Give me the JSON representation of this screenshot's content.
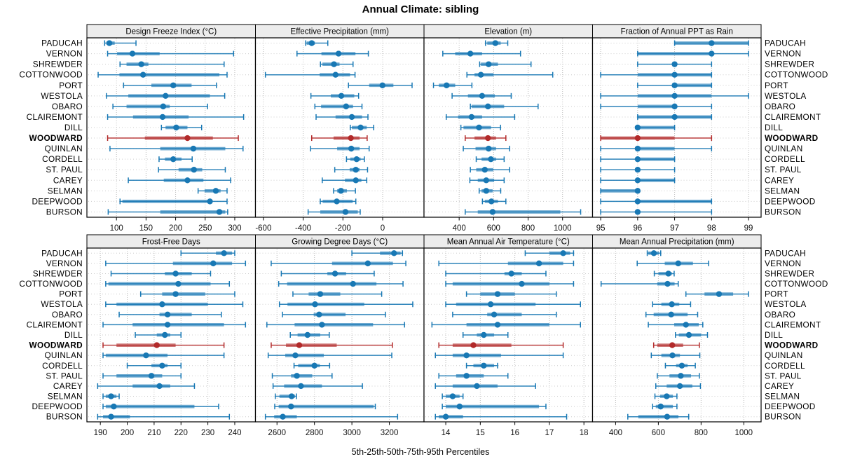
{
  "title": "Annual Climate: sibling",
  "xlabel": "5th-25th-50th-75th-95th Percentiles",
  "colors": {
    "series": "#1878b4",
    "highlight": "#b22a2a",
    "strip_bg": "#ececec",
    "panel_border": "#000000",
    "grid": "#bfbfbf",
    "row_line": "#cccccc",
    "axis_text": "#111111"
  },
  "sites": [
    {
      "name": "PADUCAH",
      "highlight": false
    },
    {
      "name": "VERNON",
      "highlight": false
    },
    {
      "name": "SHREWDER",
      "highlight": false
    },
    {
      "name": "COTTONWOOD",
      "highlight": false
    },
    {
      "name": "PORT",
      "highlight": false
    },
    {
      "name": "WESTOLA",
      "highlight": false
    },
    {
      "name": "OBARO",
      "highlight": false
    },
    {
      "name": "CLAIREMONT",
      "highlight": false
    },
    {
      "name": "DILL",
      "highlight": false
    },
    {
      "name": "WOODWARD",
      "highlight": true
    },
    {
      "name": "QUINLAN",
      "highlight": false
    },
    {
      "name": "CORDELL",
      "highlight": false
    },
    {
      "name": "ST. PAUL",
      "highlight": false
    },
    {
      "name": "CAREY",
      "highlight": false
    },
    {
      "name": "SELMAN",
      "highlight": false
    },
    {
      "name": "DEEPWOOD",
      "highlight": false
    },
    {
      "name": "BURSON",
      "highlight": false
    }
  ],
  "chart_data": [
    {
      "type": "dotplot-interval",
      "title": "Design Freeze Index (°C)",
      "xlim": [
        50,
        335
      ],
      "ticks": [
        100,
        150,
        200,
        250,
        300
      ],
      "percentiles": [
        "5th",
        "25th",
        "50th",
        "75th",
        "95th"
      ],
      "values": [
        [
          80,
          83,
          88,
          97,
          133
        ],
        [
          85,
          101,
          127,
          173,
          298
        ],
        [
          106,
          117,
          142,
          154,
          282
        ],
        [
          69,
          105,
          145,
          274,
          287
        ],
        [
          112,
          159,
          196,
          227,
          269
        ],
        [
          83,
          120,
          183,
          258,
          283
        ],
        [
          94,
          117,
          179,
          190,
          254
        ],
        [
          85,
          128,
          178,
          222,
          315
        ],
        [
          176,
          183,
          201,
          220,
          244
        ],
        [
          85,
          148,
          220,
          263,
          306
        ],
        [
          89,
          174,
          230,
          284,
          314
        ],
        [
          172,
          182,
          196,
          210,
          228
        ],
        [
          171,
          205,
          231,
          245,
          284
        ],
        [
          120,
          180,
          220,
          247,
          293
        ],
        [
          238,
          249,
          268,
          276,
          287
        ],
        [
          106,
          110,
          258,
          262,
          287
        ],
        [
          86,
          174,
          274,
          284,
          288
        ]
      ]
    },
    {
      "type": "dotplot-interval",
      "title": "Effective Precipitation (mm)",
      "xlim": [
        -640,
        208
      ],
      "ticks": [
        -600,
        -400,
        -200,
        0
      ],
      "percentiles": [
        "5th",
        "25th",
        "50th",
        "75th",
        "95th"
      ],
      "values": [
        [
          -387,
          -382,
          -357,
          -341,
          -276
        ],
        [
          -431,
          -308,
          -222,
          -137,
          -72
        ],
        [
          -313,
          -303,
          -245,
          -217,
          -149
        ],
        [
          -590,
          -317,
          -237,
          -164,
          -139
        ],
        [
          -172,
          -68,
          -1,
          54,
          148
        ],
        [
          -361,
          -261,
          -208,
          -143,
          -121
        ],
        [
          -341,
          -310,
          -184,
          -149,
          -104
        ],
        [
          -335,
          -237,
          -155,
          -104,
          -74
        ],
        [
          -163,
          -155,
          -111,
          -80,
          -45
        ],
        [
          -357,
          -247,
          -160,
          -116,
          -78
        ],
        [
          -363,
          -229,
          -158,
          -116,
          -68
        ],
        [
          -182,
          -163,
          -131,
          -111,
          -92
        ],
        [
          -241,
          -166,
          -135,
          -116,
          -76
        ],
        [
          -304,
          -190,
          -135,
          -107,
          -80
        ],
        [
          -247,
          -229,
          -210,
          -180,
          -137
        ],
        [
          -314,
          -302,
          -231,
          -151,
          -135
        ],
        [
          -375,
          -314,
          -187,
          -125,
          -113
        ]
      ]
    },
    {
      "type": "dotplot-interval",
      "title": "Elevation (m)",
      "xlim": [
        196,
        1174
      ],
      "ticks": [
        400,
        600,
        800,
        1000
      ],
      "percentiles": [
        "5th",
        "25th",
        "50th",
        "75th",
        "95th"
      ],
      "values": [
        [
          553,
          563,
          610,
          641,
          682
        ],
        [
          305,
          377,
          465,
          533,
          756
        ],
        [
          519,
          526,
          571,
          625,
          817
        ],
        [
          445,
          489,
          526,
          600,
          943
        ],
        [
          251,
          282,
          327,
          377,
          474
        ],
        [
          359,
          451,
          533,
          607,
          702
        ],
        [
          465,
          472,
          567,
          661,
          858
        ],
        [
          325,
          394,
          472,
          533,
          722
        ],
        [
          410,
          425,
          515,
          585,
          640
        ],
        [
          435,
          489,
          567,
          614,
          671
        ],
        [
          424,
          495,
          571,
          614,
          693
        ],
        [
          499,
          530,
          584,
          614,
          661
        ],
        [
          465,
          499,
          549,
          598,
          693
        ],
        [
          462,
          508,
          557,
          603,
          661
        ],
        [
          516,
          530,
          557,
          594,
          641
        ],
        [
          535,
          549,
          587,
          625,
          671
        ],
        [
          435,
          508,
          594,
          987,
          1105
        ]
      ]
    },
    {
      "type": "dotplot-interval",
      "title": "Fraction of Annual PPT as Rain",
      "xlim": [
        94.78,
        99.34
      ],
      "ticks": [
        95,
        96,
        97,
        98,
        99
      ],
      "percentiles": [
        "5th",
        "25th",
        "50th",
        "75th",
        "95th"
      ],
      "values": [
        [
          97,
          97,
          98,
          99,
          99
        ],
        [
          96,
          96,
          98,
          98,
          99
        ],
        [
          96,
          97,
          97,
          97,
          98
        ],
        [
          95,
          96,
          97,
          98,
          98
        ],
        [
          96,
          97,
          97,
          98,
          98
        ],
        [
          95,
          96,
          97,
          98,
          99
        ],
        [
          95,
          96,
          97,
          97,
          98
        ],
        [
          96,
          96,
          97,
          98,
          98
        ],
        [
          96,
          96,
          96,
          97,
          97
        ],
        [
          95,
          95,
          96,
          97,
          98
        ],
        [
          95,
          96,
          96,
          97,
          98
        ],
        [
          95,
          96,
          96,
          97,
          97
        ],
        [
          95,
          96,
          96,
          96,
          97
        ],
        [
          95,
          96,
          96,
          97,
          97
        ],
        [
          95,
          95,
          96,
          96,
          96
        ],
        [
          95,
          96,
          96,
          98,
          98
        ],
        [
          95,
          96,
          96,
          96,
          98
        ]
      ]
    },
    {
      "type": "dotplot-interval",
      "title": "Frost-Free Days",
      "xlim": [
        185,
        247.7
      ],
      "ticks": [
        190,
        200,
        210,
        220,
        230,
        240
      ],
      "percentiles": [
        "5th",
        "25th",
        "50th",
        "75th",
        "95th"
      ],
      "values": [
        [
          220,
          233,
          236,
          239,
          240
        ],
        [
          192,
          217,
          232,
          239,
          244
        ],
        [
          194,
          214,
          218,
          224,
          231
        ],
        [
          192,
          193,
          219,
          231,
          238
        ],
        [
          205,
          213,
          218,
          229,
          240
        ],
        [
          192,
          196,
          213,
          230,
          243
        ],
        [
          197,
          212,
          215,
          224,
          235
        ],
        [
          191,
          202,
          215,
          236,
          244
        ],
        [
          203,
          211,
          214,
          216,
          220
        ],
        [
          191,
          196,
          211,
          218,
          236
        ],
        [
          191,
          192,
          207,
          215,
          236
        ],
        [
          200,
          209,
          213,
          215,
          220
        ],
        [
          191,
          196,
          209,
          213,
          220
        ],
        [
          189,
          202,
          212,
          216,
          225
        ],
        [
          191,
          192,
          194,
          196,
          197
        ],
        [
          191,
          192,
          195,
          225,
          234
        ],
        [
          189,
          191,
          194,
          201,
          238
        ]
      ]
    },
    {
      "type": "dotplot-interval",
      "title": "Growing Degree Days (°C)",
      "xlim": [
        2485,
        3385
      ],
      "ticks": [
        2600,
        2800,
        3000,
        3200
      ],
      "percentiles": [
        "5th",
        "25th",
        "50th",
        "75th",
        "95th"
      ],
      "values": [
        [
          3000,
          3150,
          3225,
          3260,
          3270
        ],
        [
          2569,
          2894,
          3085,
          3219,
          3288
        ],
        [
          2623,
          2869,
          2910,
          2969,
          3119
        ],
        [
          2609,
          2654,
          3006,
          3131,
          3273
        ],
        [
          2685,
          2769,
          2831,
          2938,
          3159
        ],
        [
          2613,
          2656,
          2803,
          3066,
          3325
        ],
        [
          2629,
          2796,
          2825,
          2966,
          3179
        ],
        [
          2546,
          2694,
          2840,
          3113,
          3281
        ],
        [
          2671,
          2710,
          2763,
          2831,
          2879
        ],
        [
          2569,
          2648,
          2719,
          2919,
          3216
        ],
        [
          2553,
          2644,
          2698,
          2850,
          3213
        ],
        [
          2691,
          2713,
          2800,
          2829,
          2881
        ],
        [
          2575,
          2675,
          2706,
          2788,
          2894
        ],
        [
          2579,
          2638,
          2728,
          2840,
          3056
        ],
        [
          2591,
          2613,
          2678,
          2696,
          2704
        ],
        [
          2588,
          2609,
          2675,
          3116,
          3125
        ],
        [
          2538,
          2585,
          2631,
          2706,
          3244
        ]
      ]
    },
    {
      "type": "dotplot-interval",
      "title": "Mean Annual Air Temperature (°C)",
      "xlim": [
        13.37,
        18.25
      ],
      "ticks": [
        14,
        15,
        16,
        17,
        18
      ],
      "percentiles": [
        "5th",
        "25th",
        "50th",
        "75th",
        "95th"
      ],
      "values": [
        [
          16.3,
          17.0,
          17.4,
          17.6,
          17.7
        ],
        [
          13.8,
          15.8,
          16.7,
          17.4,
          17.7
        ],
        [
          14.0,
          15.7,
          15.9,
          16.2,
          16.9
        ],
        [
          14.0,
          14.2,
          16.2,
          17.0,
          17.7
        ],
        [
          14.6,
          15.0,
          15.5,
          16.0,
          17.2
        ],
        [
          14.0,
          14.3,
          15.3,
          16.6,
          17.9
        ],
        [
          14.2,
          15.2,
          15.4,
          16.2,
          17.2
        ],
        [
          13.6,
          14.6,
          15.5,
          17.0,
          17.9
        ],
        [
          14.5,
          14.9,
          15.1,
          15.4,
          15.8
        ],
        [
          13.8,
          14.2,
          14.8,
          15.9,
          17.4
        ],
        [
          13.7,
          14.2,
          14.6,
          15.6,
          17.4
        ],
        [
          14.6,
          14.8,
          15.1,
          15.4,
          15.5
        ],
        [
          13.8,
          14.3,
          14.6,
          15.1,
          15.8
        ],
        [
          13.7,
          14.2,
          14.9,
          15.5,
          16.6
        ],
        [
          13.9,
          14.0,
          14.2,
          14.4,
          14.5
        ],
        [
          13.9,
          14.0,
          14.4,
          16.7,
          16.9
        ],
        [
          13.7,
          13.8,
          14.0,
          14.5,
          17.5
        ]
      ]
    },
    {
      "type": "dotplot-interval",
      "title": "Mean Annual Precipitation (mm)",
      "xlim": [
        292,
        1081
      ],
      "ticks": [
        400,
        600,
        800,
        1000
      ],
      "percentiles": [
        "5th",
        "25th",
        "50th",
        "75th",
        "95th"
      ],
      "values": [
        [
          548,
          553,
          579,
          603,
          611
        ],
        [
          501,
          630,
          693,
          762,
          835
        ],
        [
          581,
          601,
          647,
          663,
          674
        ],
        [
          332,
          595,
          643,
          676,
          693
        ],
        [
          729,
          816,
          884,
          950,
          1022
        ],
        [
          573,
          614,
          663,
          698,
          751
        ],
        [
          542,
          578,
          660,
          737,
          784
        ],
        [
          553,
          674,
          729,
          789,
          808
        ],
        [
          680,
          696,
          743,
          800,
          830
        ],
        [
          578,
          595,
          665,
          716,
          792
        ],
        [
          567,
          614,
          666,
          701,
          794
        ],
        [
          633,
          683,
          710,
          737,
          773
        ],
        [
          595,
          652,
          705,
          753,
          792
        ],
        [
          588,
          639,
          701,
          759,
          797
        ],
        [
          584,
          608,
          639,
          668,
          687
        ],
        [
          573,
          588,
          611,
          668,
          687
        ],
        [
          457,
          506,
          641,
          694,
          742
        ]
      ]
    }
  ]
}
